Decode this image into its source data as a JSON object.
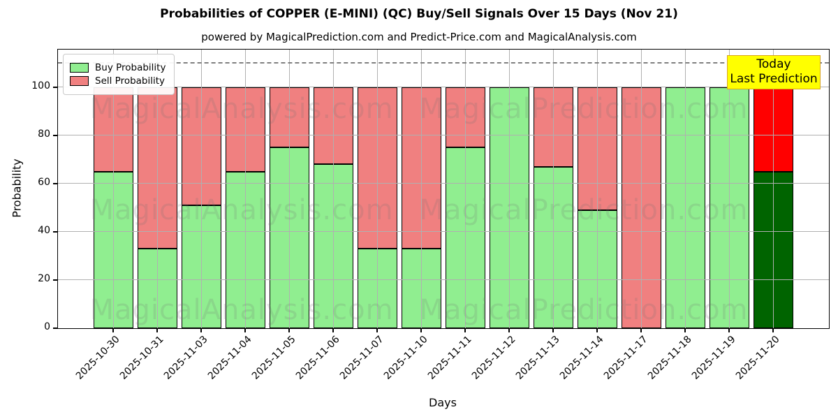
{
  "title": "Probabilities of COPPER (E-MINI) (QC) Buy/Sell Signals Over 15 Days (Nov 21)",
  "subtitle": "powered by MagicalPrediction.com and Predict-Price.com and MagicalAnalysis.com",
  "legend": {
    "buy_label": "Buy Probability",
    "sell_label": "Sell Probability"
  },
  "annotation": {
    "line1": "Today",
    "line2": "Last Prediction"
  },
  "watermarks": {
    "left": "MagicalAnalysis.com",
    "right": "MagicalPrediction.com"
  },
  "colors": {
    "buy": "#90EE90",
    "sell": "#F08080",
    "today_buy": "#006400",
    "today_sell": "#FF0000",
    "grid": "#B0B0B0",
    "dashed_line": "#7F7F7F",
    "annotation_bg": "#FFFF00",
    "annotation_border": "#DAA520"
  },
  "chart_data": {
    "type": "bar",
    "stacked": true,
    "title": "Probabilities of COPPER (E-MINI) (QC) Buy/Sell Signals Over 15 Days (Nov 21)",
    "xlabel": "Days",
    "ylabel": "Probability",
    "categories": [
      "2025-10-30",
      "2025-10-31",
      "2025-11-03",
      "2025-11-04",
      "2025-11-05",
      "2025-11-06",
      "2025-11-07",
      "2025-11-10",
      "2025-11-11",
      "2025-11-12",
      "2025-11-13",
      "2025-11-14",
      "2025-11-17",
      "2025-11-18",
      "2025-11-19",
      "2025-11-20"
    ],
    "series": [
      {
        "name": "Buy Probability",
        "color": "#90EE90",
        "values": [
          65,
          33,
          51,
          65,
          75,
          68,
          33,
          33,
          75,
          100,
          67,
          49,
          0,
          100,
          100,
          65
        ]
      },
      {
        "name": "Sell Probability",
        "color": "#F08080",
        "values": [
          35,
          67,
          49,
          35,
          25,
          32,
          67,
          67,
          25,
          0,
          33,
          51,
          100,
          0,
          0,
          35
        ]
      }
    ],
    "today_index": 15,
    "today_colors": {
      "buy": "#006400",
      "sell": "#FF0000"
    },
    "yticks": [
      0,
      20,
      40,
      60,
      80,
      100
    ],
    "ylim": [
      0,
      115.7
    ],
    "dashed_line_y": 110,
    "grid": true,
    "legend_position": "upper left"
  }
}
